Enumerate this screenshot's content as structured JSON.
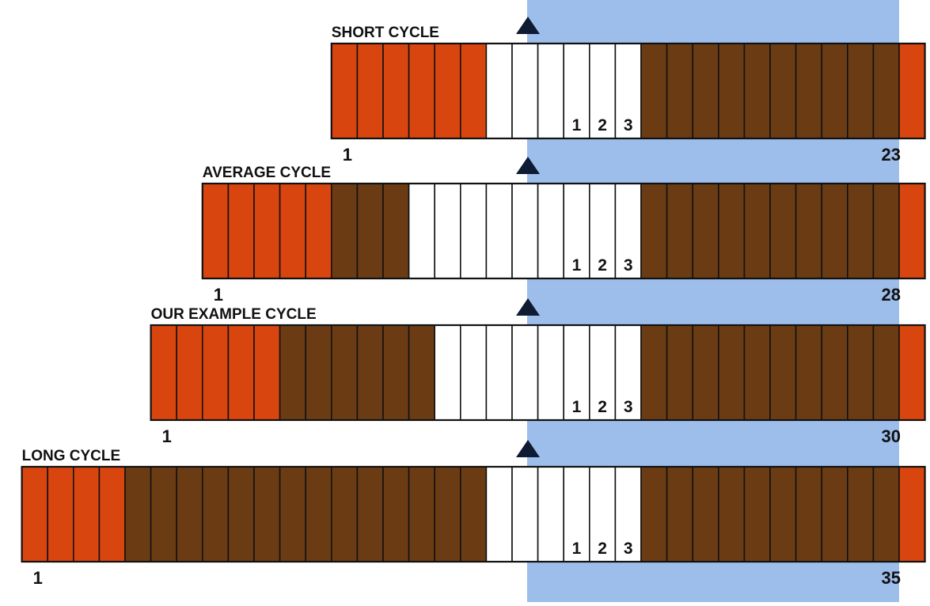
{
  "colors": {
    "menstrual": "#d9450f",
    "infertile": "#6b3c14",
    "fertile": "#ffffff",
    "highlight": "#9dbdeb",
    "outline": "#111111",
    "marker": "#0f1a33"
  },
  "marker_icon": "triangle-up",
  "cycles": [
    {
      "title": "SHORT CYCLE",
      "start_label": "1",
      "end_label": "23",
      "days": [
        "M",
        "M",
        "M",
        "M",
        "M",
        "M",
        "F",
        "F",
        "F",
        "F",
        "F",
        "F",
        "I",
        "I",
        "I",
        "I",
        "I",
        "I",
        "I",
        "I",
        "I",
        "I",
        "M"
      ],
      "day_labels": [
        "1",
        "2",
        "3"
      ]
    },
    {
      "title": "AVERAGE CYCLE",
      "start_label": "1",
      "end_label": "28",
      "days": [
        "M",
        "M",
        "M",
        "M",
        "M",
        "I",
        "I",
        "I",
        "F",
        "F",
        "F",
        "F",
        "F",
        "F",
        "F",
        "F",
        "F",
        "I",
        "I",
        "I",
        "I",
        "I",
        "I",
        "I",
        "I",
        "I",
        "I",
        "M"
      ],
      "day_labels": [
        "1",
        "2",
        "3"
      ]
    },
    {
      "title": "OUR EXAMPLE CYCLE",
      "start_label": "1",
      "end_label": "30",
      "days": [
        "M",
        "M",
        "M",
        "M",
        "M",
        "I",
        "I",
        "I",
        "I",
        "I",
        "I",
        "F",
        "F",
        "F",
        "F",
        "F",
        "F",
        "F",
        "F",
        "I",
        "I",
        "I",
        "I",
        "I",
        "I",
        "I",
        "I",
        "I",
        "I",
        "M"
      ],
      "day_labels": [
        "1",
        "2",
        "3"
      ]
    },
    {
      "title": "LONG CYCLE",
      "start_label": "1",
      "end_label": "35",
      "days": [
        "M",
        "M",
        "M",
        "M",
        "I",
        "I",
        "I",
        "I",
        "I",
        "I",
        "I",
        "I",
        "I",
        "I",
        "I",
        "I",
        "I",
        "I",
        "F",
        "F",
        "F",
        "F",
        "F",
        "F",
        "I",
        "I",
        "I",
        "I",
        "I",
        "I",
        "I",
        "I",
        "I",
        "I",
        "M"
      ],
      "day_labels": [
        "1",
        "2",
        "3"
      ]
    }
  ]
}
